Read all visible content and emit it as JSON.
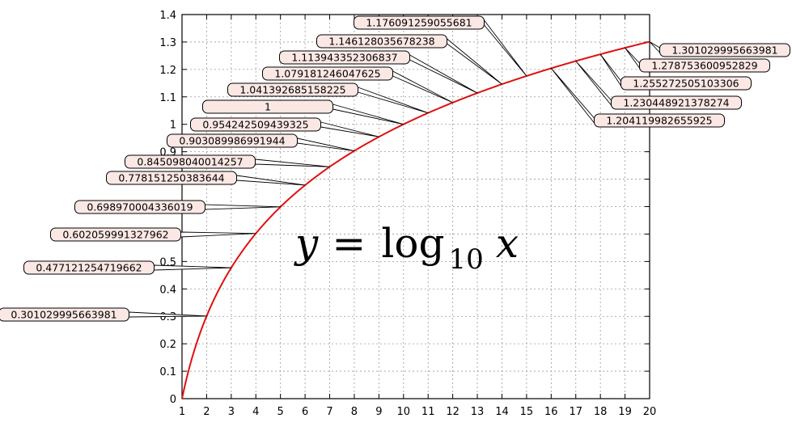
{
  "chart_data": {
    "type": "line",
    "title": "",
    "xlabel": "",
    "ylabel": "",
    "xlim": [
      1,
      20
    ],
    "ylim": [
      0,
      1.4
    ],
    "x_ticks": [
      "1",
      "2",
      "3",
      "4",
      "5",
      "6",
      "7",
      "8",
      "9",
      "10",
      "11",
      "12",
      "13",
      "14",
      "15",
      "16",
      "17",
      "18",
      "19",
      "20"
    ],
    "y_ticks": [
      "0",
      "0.1",
      "0.2",
      "0.3",
      "0.4",
      "0.5",
      "0.6",
      "0.7",
      "0.8",
      "0.9",
      "1",
      "1.1",
      "1.2",
      "1.3",
      "1.4"
    ],
    "grid": true,
    "line_color": "#e01010",
    "label_fill": "#fbe8e5",
    "annotation": {
      "y_var": "y",
      "eq": "=",
      "func": "log",
      "base": "10",
      "x_var": "x"
    },
    "series": [
      {
        "x": [
          1,
          2,
          3,
          4,
          5,
          6,
          7,
          8,
          9,
          10,
          11,
          12,
          13,
          14,
          15,
          16,
          17,
          18,
          19,
          20
        ],
        "labels": [
          "",
          "0.301029995663981",
          "0.477121254719662",
          "0.602059991327962",
          "0.698970004336019",
          "0.778151250383644",
          "0.845098040014257",
          "0.903089986991944",
          "0.954242509439325",
          "1",
          "1.041392685158225",
          "1.079181246047625",
          "1.113943352306837",
          "1.146128035678238",
          "1.176091259055681",
          "1.204119982655925",
          "1.230448921378274",
          "1.255272505103306",
          "1.278753600952829",
          "1.301029995663981"
        ],
        "values": [
          0,
          0.301029995663981,
          0.477121254719662,
          0.602059991327962,
          0.698970004336019,
          0.778151250383644,
          0.845098040014257,
          0.903089986991944,
          0.954242509439325,
          1,
          1.041392685158225,
          1.079181246047625,
          1.113943352306837,
          1.146128035678238,
          1.176091259055681,
          1.204119982655925,
          1.230448921378274,
          1.255272505103306,
          1.278753600952829,
          1.301029995663981
        ]
      }
    ]
  }
}
